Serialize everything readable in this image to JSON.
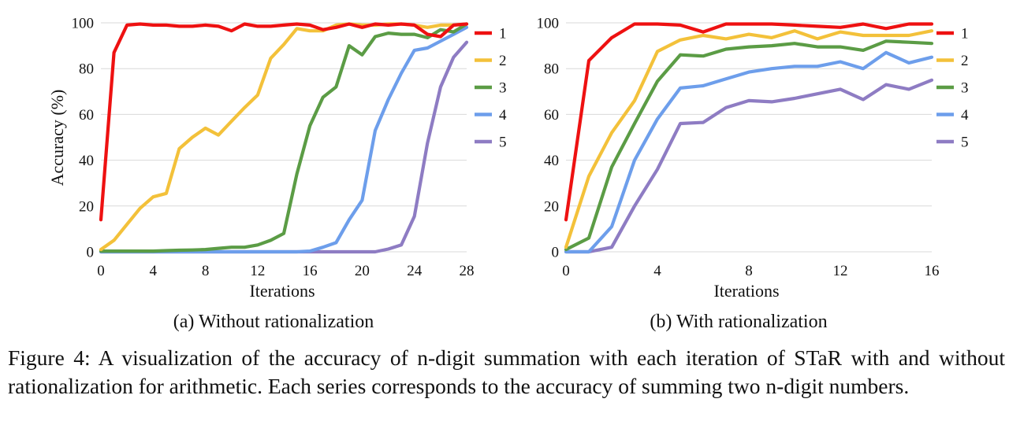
{
  "figure": {
    "caption_lines": [
      "Figure 4: A visualization of the accuracy of n-digit summation with each iteration of STaR with",
      "and without rationalization for arithmetic. Each series corresponds to the accuracy of summing two",
      "n-digit numbers."
    ]
  },
  "colors": {
    "1": "#ee1111",
    "2": "#f3c13a",
    "3": "#5b9c45",
    "4": "#6d9eeb",
    "5": "#8e7cc3",
    "grid": "#d9d9d9"
  },
  "chart_data": [
    {
      "type": "line",
      "caption": "(a) Without rationalization",
      "xlabel": "Iterations",
      "ylabel": "Accuracy (%)",
      "xlim": [
        0,
        28
      ],
      "ylim": [
        0,
        100
      ],
      "xticks": [
        "0",
        "4",
        "8",
        "12",
        "16",
        "20",
        "24",
        "28"
      ],
      "yticks": [
        "0",
        "20",
        "40",
        "60",
        "80",
        "100"
      ],
      "grid": "horizontal",
      "legend": "right",
      "series": [
        {
          "name": "1",
          "x": [
            0,
            1,
            2,
            3,
            4,
            5,
            6,
            7,
            8,
            9,
            10,
            11,
            12,
            13,
            14,
            15,
            16,
            17,
            18,
            19,
            20,
            21,
            22,
            23,
            24,
            25,
            26,
            27,
            28
          ],
          "y": [
            14,
            87,
            99,
            99.5,
            99,
            99,
            98.5,
            98.5,
            99,
            98.5,
            96.5,
            99.5,
            98.5,
            98.5,
            99,
            99.5,
            99,
            97,
            98,
            99.5,
            98,
            99.5,
            99,
            99.5,
            99,
            95,
            94,
            99,
            99.5
          ]
        },
        {
          "name": "2",
          "x": [
            0,
            1,
            2,
            3,
            4,
            5,
            6,
            7,
            8,
            9,
            10,
            11,
            12,
            13,
            14,
            15,
            16,
            17,
            18,
            19,
            20,
            21,
            22,
            23,
            24,
            25,
            26,
            27,
            28
          ],
          "y": [
            1,
            5,
            12,
            19,
            24,
            25.5,
            45,
            50,
            54,
            51,
            57,
            63,
            68.5,
            84.5,
            90.5,
            97.5,
            96.5,
            96.5,
            99,
            99.5,
            99,
            99,
            99.5,
            99.5,
            99,
            98,
            99,
            99,
            99.5
          ]
        },
        {
          "name": "3",
          "x": [
            0,
            1,
            2,
            3,
            4,
            5,
            6,
            7,
            8,
            9,
            10,
            11,
            12,
            13,
            14,
            15,
            16,
            17,
            18,
            19,
            20,
            21,
            22,
            23,
            24,
            25,
            26,
            27,
            28
          ],
          "y": [
            0.3,
            0.3,
            0.3,
            0.3,
            0.3,
            0.5,
            0.7,
            0.8,
            1,
            1.5,
            2,
            2,
            3,
            5,
            8,
            34,
            55,
            67.5,
            72,
            90,
            86,
            94,
            95.5,
            95,
            95,
            93.5,
            97,
            96,
            99.5
          ]
        },
        {
          "name": "4",
          "x": [
            0,
            1,
            2,
            3,
            4,
            5,
            6,
            7,
            8,
            9,
            10,
            11,
            12,
            13,
            14,
            15,
            16,
            17,
            18,
            19,
            20,
            21,
            22,
            23,
            24,
            25,
            26,
            27,
            28
          ],
          "y": [
            0,
            0,
            0,
            0,
            0,
            0,
            0,
            0,
            0,
            0,
            0,
            0,
            0,
            0,
            0,
            0,
            0.3,
            2,
            4,
            14,
            22.5,
            53,
            66.5,
            78,
            88,
            89,
            92,
            95,
            98
          ]
        },
        {
          "name": "5",
          "x": [
            0,
            1,
            2,
            3,
            4,
            5,
            6,
            7,
            8,
            9,
            10,
            11,
            12,
            13,
            14,
            15,
            16,
            17,
            18,
            19,
            20,
            21,
            22,
            23,
            24,
            25,
            26,
            27,
            28
          ],
          "y": [
            0,
            0,
            0,
            0,
            0,
            0,
            0,
            0,
            0,
            0,
            0,
            0,
            0,
            0,
            0,
            0,
            0,
            0,
            0,
            0,
            0,
            0,
            1.2,
            3,
            15.5,
            47.5,
            72,
            85,
            91.5
          ]
        }
      ]
    },
    {
      "type": "line",
      "caption": "(b) With rationalization",
      "xlabel": "Iterations",
      "ylabel": "",
      "xlim": [
        0,
        16
      ],
      "ylim": [
        0,
        100
      ],
      "xticks": [
        "0",
        "4",
        "8",
        "12",
        "16"
      ],
      "yticks": [
        "0",
        "20",
        "40",
        "60",
        "80",
        "100"
      ],
      "grid": "horizontal",
      "legend": "right",
      "series": [
        {
          "name": "1",
          "x": [
            0,
            1,
            2,
            3,
            4,
            5,
            6,
            7,
            8,
            9,
            10,
            11,
            12,
            13,
            14,
            15,
            16
          ],
          "y": [
            14,
            83.5,
            93.5,
            99.5,
            99.5,
            99,
            96,
            99.5,
            99.5,
            99.5,
            99,
            98.5,
            98,
            99.5,
            97.5,
            99.5,
            99.5
          ]
        },
        {
          "name": "2",
          "x": [
            0,
            1,
            2,
            3,
            4,
            5,
            6,
            7,
            8,
            9,
            10,
            11,
            12,
            13,
            14,
            15,
            16
          ],
          "y": [
            2,
            33,
            52,
            66,
            87.5,
            92.5,
            94.5,
            93,
            95,
            93.5,
            96.5,
            93,
            96,
            94.5,
            94.5,
            94.5,
            96.5
          ]
        },
        {
          "name": "3",
          "x": [
            0,
            1,
            2,
            3,
            4,
            5,
            6,
            7,
            8,
            9,
            10,
            11,
            12,
            13,
            14,
            15,
            16
          ],
          "y": [
            1,
            6,
            37,
            56,
            74.5,
            86,
            85.5,
            88.5,
            89.5,
            90,
            91,
            89.5,
            89.5,
            88,
            92,
            91.5,
            91
          ]
        },
        {
          "name": "4",
          "x": [
            0,
            1,
            2,
            3,
            4,
            5,
            6,
            7,
            8,
            9,
            10,
            11,
            12,
            13,
            14,
            15,
            16
          ],
          "y": [
            0,
            0,
            11,
            40,
            58,
            71.5,
            72.5,
            75.5,
            78.5,
            80,
            81,
            81,
            83,
            80,
            87,
            82.5,
            85
          ]
        },
        {
          "name": "5",
          "x": [
            0,
            1,
            2,
            3,
            4,
            5,
            6,
            7,
            8,
            9,
            10,
            11,
            12,
            13,
            14,
            15,
            16
          ],
          "y": [
            0,
            0,
            2,
            20,
            36,
            56,
            56.5,
            63,
            66,
            65.5,
            67,
            69,
            71,
            66.5,
            73,
            71,
            75
          ]
        }
      ]
    }
  ]
}
